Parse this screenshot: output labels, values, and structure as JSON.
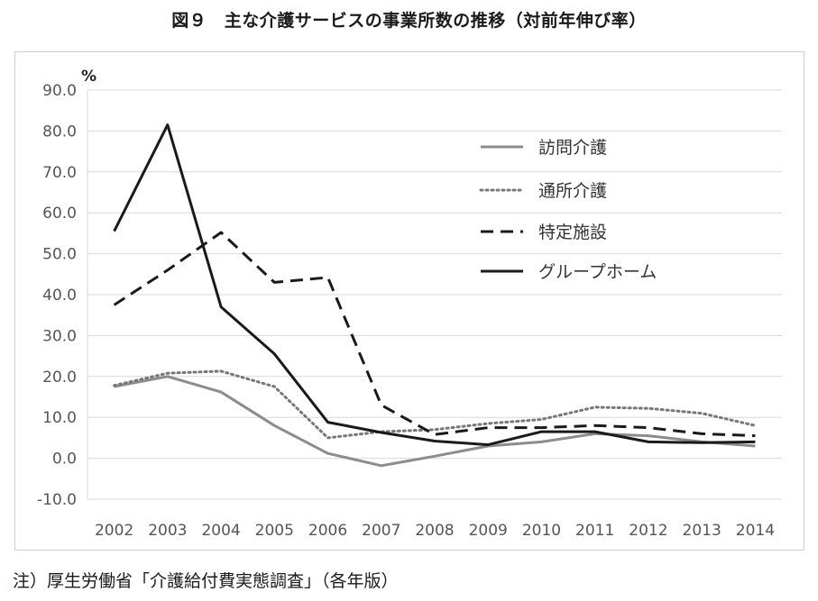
{
  "title": "図９　主な介護サービスの事業所数の推移（対前年伸び率）",
  "note": "注）厚生労働省「介護給付費実態調査」（各年版）",
  "chart_data": {
    "type": "line",
    "ylabel": "%",
    "xlabel": "",
    "ylim": [
      -10,
      90
    ],
    "y_ticks": [
      "90.0",
      "80.0",
      "70.0",
      "60.0",
      "50.0",
      "40.0",
      "30.0",
      "20.0",
      "10.0",
      "0.0",
      "-10.0"
    ],
    "categories": [
      "2002",
      "2003",
      "2004",
      "2005",
      "2006",
      "2007",
      "2008",
      "2009",
      "2010",
      "2011",
      "2012",
      "2013",
      "2014"
    ],
    "grid": true,
    "legend_position": "inside-right",
    "series": [
      {
        "name": "訪問介護",
        "style": "solid",
        "color": "#8c8c8c",
        "values": [
          17.5,
          20.0,
          16.2,
          8.0,
          1.2,
          -1.8,
          0.5,
          3.0,
          4.0,
          6.0,
          5.5,
          4.0,
          3.0
        ]
      },
      {
        "name": "通所介護",
        "style": "dotted",
        "color": "#777777",
        "values": [
          17.8,
          20.8,
          21.3,
          17.5,
          5.0,
          6.5,
          7.0,
          8.5,
          9.5,
          12.5,
          12.2,
          11.0,
          8.0
        ]
      },
      {
        "name": "特定施設",
        "style": "dashed",
        "color": "#1a1a1a",
        "values": [
          37.5,
          46.0,
          55.2,
          43.0,
          44.2,
          13.0,
          5.8,
          7.5,
          7.5,
          8.0,
          7.5,
          6.0,
          5.5
        ]
      },
      {
        "name": "グループホーム",
        "style": "solid-bold",
        "color": "#1a1a1a",
        "values": [
          55.5,
          81.5,
          37.0,
          25.5,
          8.8,
          6.3,
          4.2,
          3.3,
          6.5,
          6.5,
          4.0,
          3.8,
          4.0
        ]
      }
    ]
  }
}
